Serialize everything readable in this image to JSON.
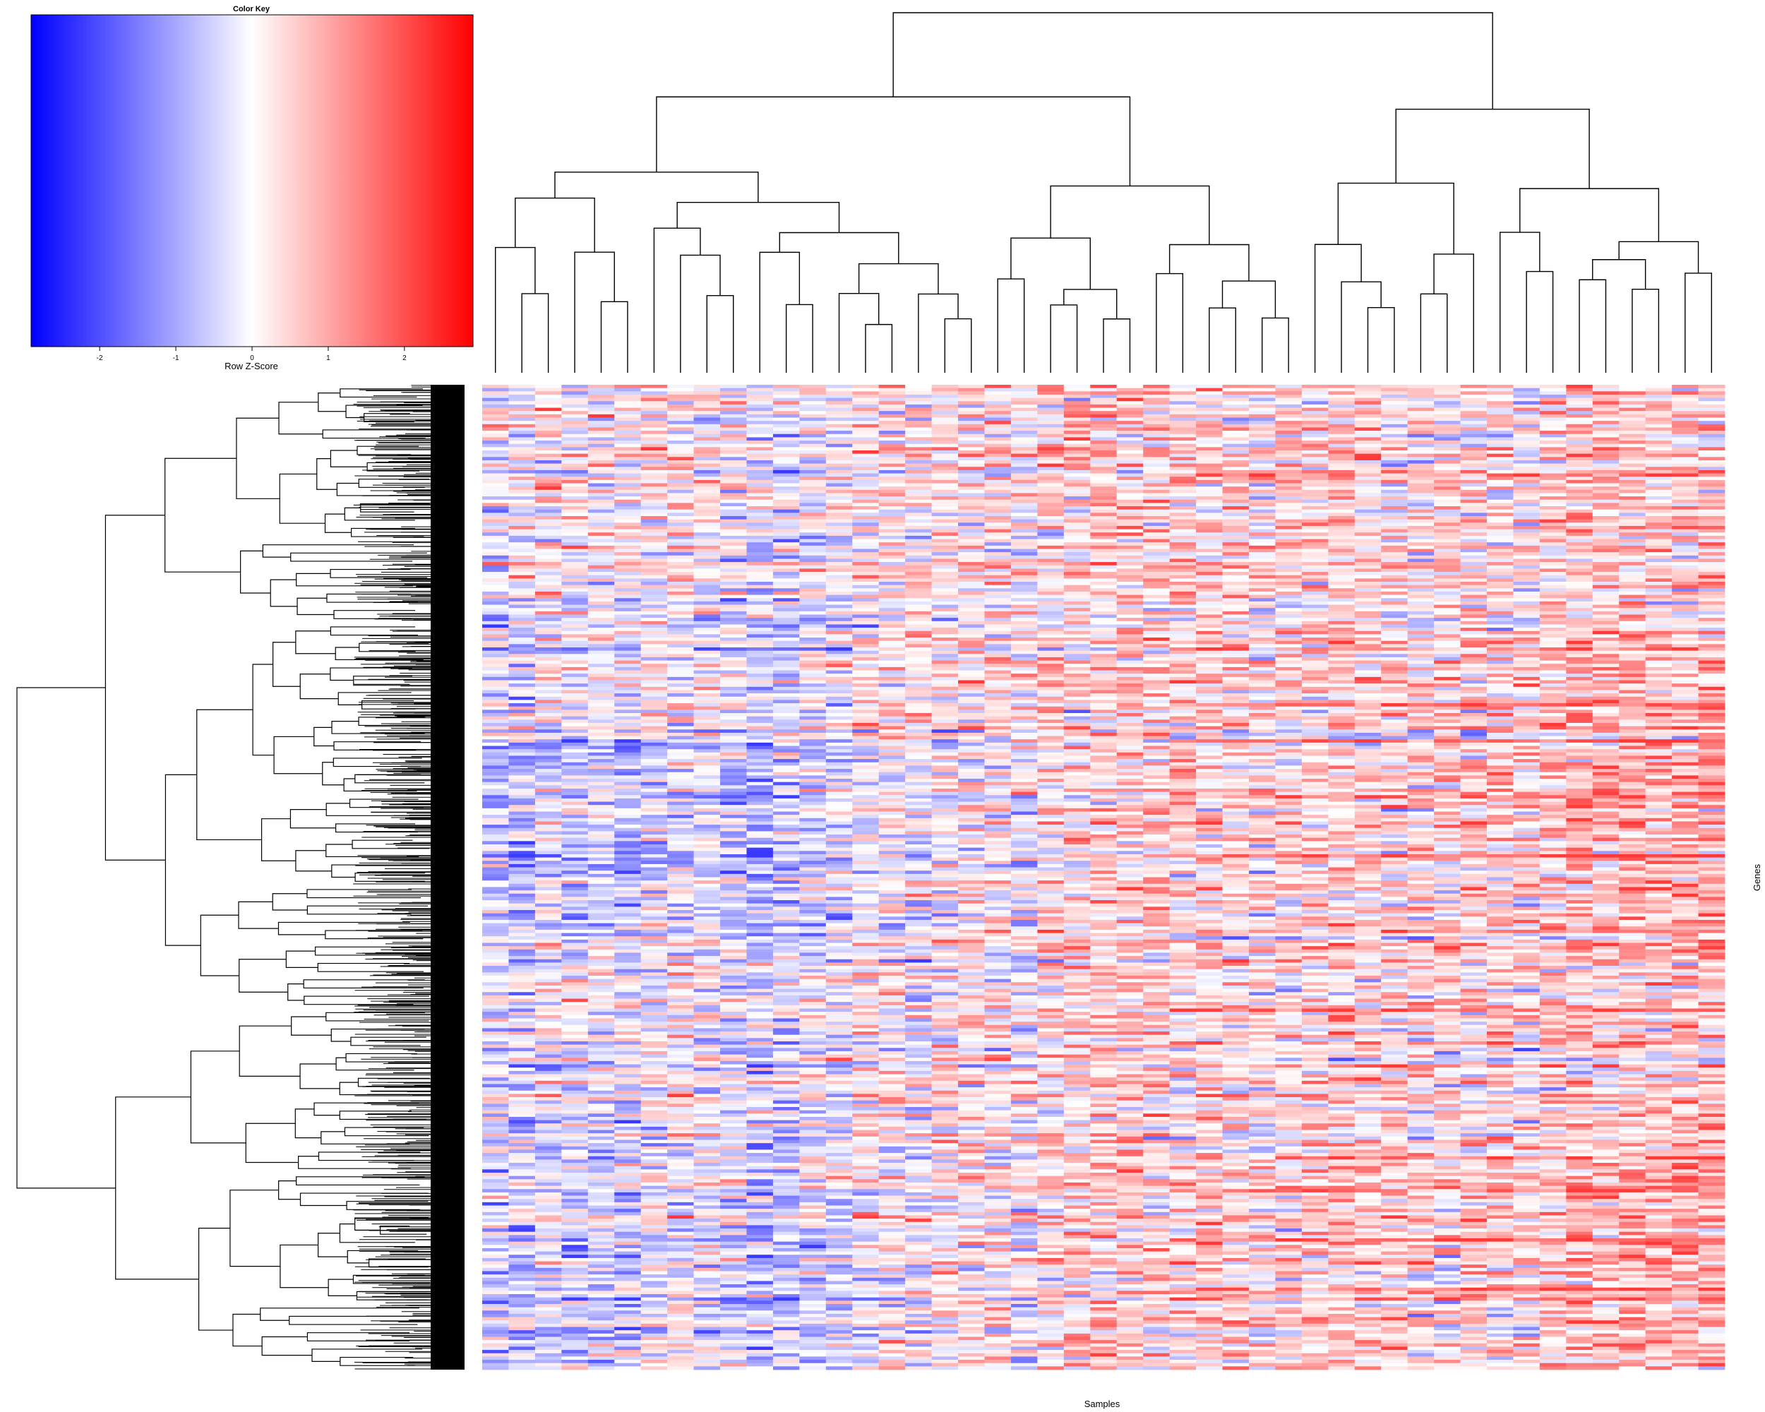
{
  "chart_data": {
    "type": "heatmap",
    "title": "",
    "xlabel": "Samples",
    "ylabel": "Genes",
    "color_key": {
      "title": "Color Key",
      "label": "Row Z-Score",
      "ticks": [
        -2,
        -1,
        0,
        1,
        2
      ],
      "range": [
        -2.9,
        2.9
      ],
      "low_color": "#0000ff",
      "mid_color": "#ffffff",
      "high_color": "#ff0000"
    },
    "column_dendrogram": true,
    "row_dendrogram": true,
    "n_columns": 47,
    "column_cluster_profile": [
      -0.2,
      -0.3,
      0.1,
      -0.2,
      -0.1,
      -0.4,
      0.2,
      0.1,
      -0.1,
      -0.3,
      -0.6,
      -0.5,
      -0.3,
      -0.2,
      0.1,
      0.2,
      0.1,
      0.2,
      0.3,
      0.2,
      0.1,
      0.4,
      0.5,
      0.6,
      0.6,
      0.5,
      0.5,
      0.4,
      0.3,
      0.2,
      0.3,
      0.4,
      0.5,
      0.3,
      0.2,
      0.2,
      0.1,
      0.2,
      0.3,
      0.1,
      0.4,
      0.6,
      0.5,
      0.6,
      0.5,
      0.6,
      0.5
    ],
    "row_band_profile": [
      {
        "from": 0.0,
        "to": 0.12,
        "left": 0.3,
        "right": 0.1
      },
      {
        "from": 0.12,
        "to": 0.25,
        "left": 0.1,
        "right": 0.2
      },
      {
        "from": 0.25,
        "to": 0.35,
        "left": -0.1,
        "right": 0.5
      },
      {
        "from": 0.35,
        "to": 0.58,
        "left": -0.6,
        "right": 0.7
      },
      {
        "from": 0.58,
        "to": 0.74,
        "left": 0.0,
        "right": 0.1
      },
      {
        "from": 0.74,
        "to": 1.0,
        "left": -0.3,
        "right": 0.6
      }
    ]
  },
  "colors": {
    "dendrogram": "#000000",
    "background": "#ffffff"
  }
}
